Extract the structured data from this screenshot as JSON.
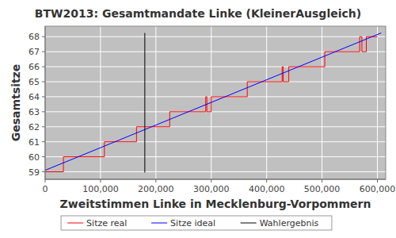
{
  "chart_data": {
    "type": "line",
    "title": "BTW2013: Gesamtmandate Linke (KleinerAusgleich)",
    "x_label": "Zweitstimmen Linke in Mecklenburg-Vorpommern",
    "y_label": "Gesamtsitze",
    "xlim": [
      0,
      615000
    ],
    "ylim": [
      58.5,
      68.7
    ],
    "xticks": [
      {
        "value": 0,
        "label": "0"
      },
      {
        "value": 100000,
        "label": "100,000"
      },
      {
        "value": 200000,
        "label": "200,000"
      },
      {
        "value": 300000,
        "label": "300,000"
      },
      {
        "value": 400000,
        "label": "400,000"
      },
      {
        "value": 500000,
        "label": "500,000"
      },
      {
        "value": 600000,
        "label": "600,000"
      }
    ],
    "yticks": [
      59,
      60,
      61,
      62,
      63,
      64,
      65,
      66,
      67,
      68
    ],
    "grid": true,
    "legend": "bottom",
    "series": [
      {
        "name": "Sitze real",
        "color": "#ff0000",
        "x": [
          0,
          33000,
          33000,
          107000,
          107000,
          165000,
          165000,
          225000,
          225000,
          290000,
          290000,
          292000,
          292000,
          300000,
          300000,
          365000,
          365000,
          428000,
          428000,
          430000,
          430000,
          440000,
          440000,
          505000,
          505000,
          568000,
          568000,
          572000,
          572000,
          580000,
          580000,
          600000
        ],
        "values": [
          59,
          59,
          60,
          60,
          61,
          61,
          62,
          62,
          63,
          63,
          64,
          64,
          63,
          63,
          64,
          64,
          65,
          65,
          66,
          66,
          65,
          65,
          66,
          66,
          67,
          67,
          68,
          68,
          67,
          67,
          68,
          68
        ]
      },
      {
        "name": "Sitze ideal",
        "color": "#0000ff",
        "x": [
          0,
          607000
        ],
        "values": [
          59.1,
          68.25
        ]
      },
      {
        "name": "Wahlergebnis",
        "color": "#000000",
        "x": [
          180000,
          180000
        ],
        "values": [
          58.95,
          68.25
        ]
      }
    ]
  }
}
